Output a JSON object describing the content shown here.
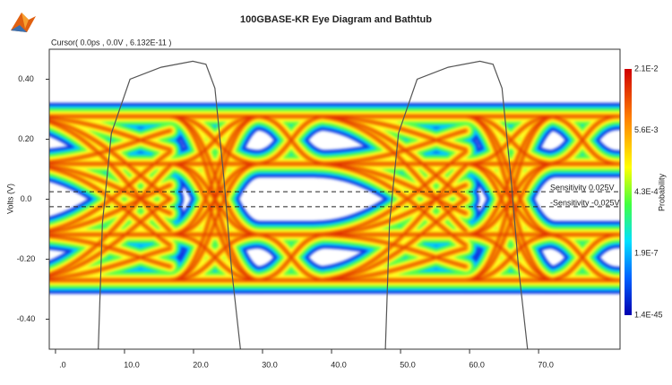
{
  "cursor_label": "Cursor( 0.0ps , 0.0V , 6.132E-11 )",
  "chart_data": {
    "type": "eye",
    "title": "100GBASE-KR Eye Diagram and Bathtub",
    "y_label": "Volts (V)",
    "colorbar_label": "Probability",
    "colorbar_ticks": [
      "2.1E-2",
      "5.6E-3",
      "4.3E-4",
      "1.9E-7",
      "1.4E-45"
    ],
    "xlim": [
      -0.9,
      81.8
    ],
    "ylim": [
      -0.5,
      0.5
    ],
    "xticks": [
      {
        "value": 0,
        "label": ".0"
      },
      {
        "value": 10,
        "label": "10.0"
      },
      {
        "value": 20,
        "label": "20.0"
      },
      {
        "value": 30,
        "label": "30.0"
      },
      {
        "value": 40,
        "label": "40.0"
      },
      {
        "value": 50,
        "label": "50.0"
      },
      {
        "value": 60,
        "label": "60.0"
      },
      {
        "value": 70,
        "label": "70.0"
      }
    ],
    "yticks": [
      {
        "value": 0.4,
        "label": "0.40"
      },
      {
        "value": 0.2,
        "label": "0.20"
      },
      {
        "value": 0,
        "label": "0.0"
      },
      {
        "value": -0.2,
        "label": "-0.20"
      },
      {
        "value": -0.4,
        "label": "-0.40"
      }
    ],
    "sensitivity": [
      {
        "value": 0.025,
        "label": "Sensitivity 0.025V"
      },
      {
        "value": -0.025,
        "label": "-Sensitivity -0.025V"
      }
    ],
    "series": [
      {
        "color": "#555555",
        "x": [
          6.2,
          6.8,
          8.1,
          10.8,
          15.3,
          19.9,
          21.8,
          23.1,
          24.4,
          25.5,
          26.8
        ],
        "values": [
          -0.5,
          -0.08,
          0.22,
          0.4,
          0.44,
          0.46,
          0.45,
          0.37,
          0.07,
          -0.23,
          -0.5
        ]
      },
      {
        "color": "#555555",
        "x": [
          47.8,
          48.4,
          49.7,
          52.4,
          56.9,
          61.5,
          63.4,
          64.7,
          66.0,
          67.1,
          68.4
        ],
        "values": [
          -0.5,
          -0.08,
          0.22,
          0.4,
          0.44,
          0.46,
          0.45,
          0.37,
          0.07,
          -0.23,
          -0.5
        ]
      }
    ]
  }
}
